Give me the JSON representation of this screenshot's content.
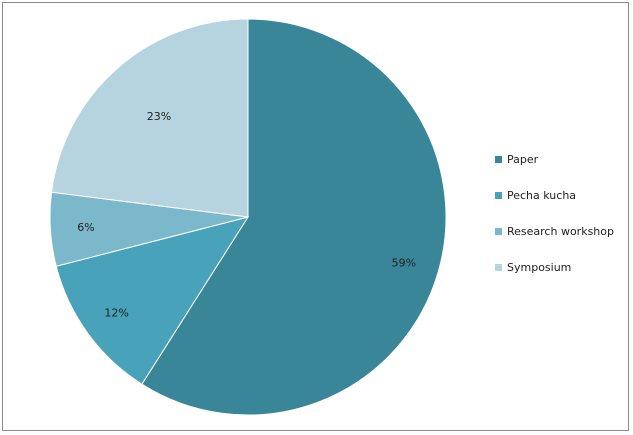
{
  "chart_data": {
    "type": "pie",
    "title": "",
    "categories": [
      "Paper",
      "Pecha kucha",
      "Research workshop",
      "Symposium"
    ],
    "values": [
      59,
      12,
      6,
      23
    ],
    "labels": [
      "59%",
      "12%",
      "6%",
      "23%"
    ],
    "colors": [
      "#3a8699",
      "#48a2b9",
      "#7bb8cc",
      "#b6d4df"
    ],
    "legend_position": "right",
    "start_angle_deg": 0,
    "direction": "clockwise"
  },
  "legend": {
    "items": [
      {
        "label": "Paper",
        "color": "#3a8699"
      },
      {
        "label": "Pecha kucha",
        "color": "#48a2b9"
      },
      {
        "label": "Research workshop",
        "color": "#7bb8cc"
      },
      {
        "label": "Symposium",
        "color": "#b6d4df"
      }
    ]
  }
}
